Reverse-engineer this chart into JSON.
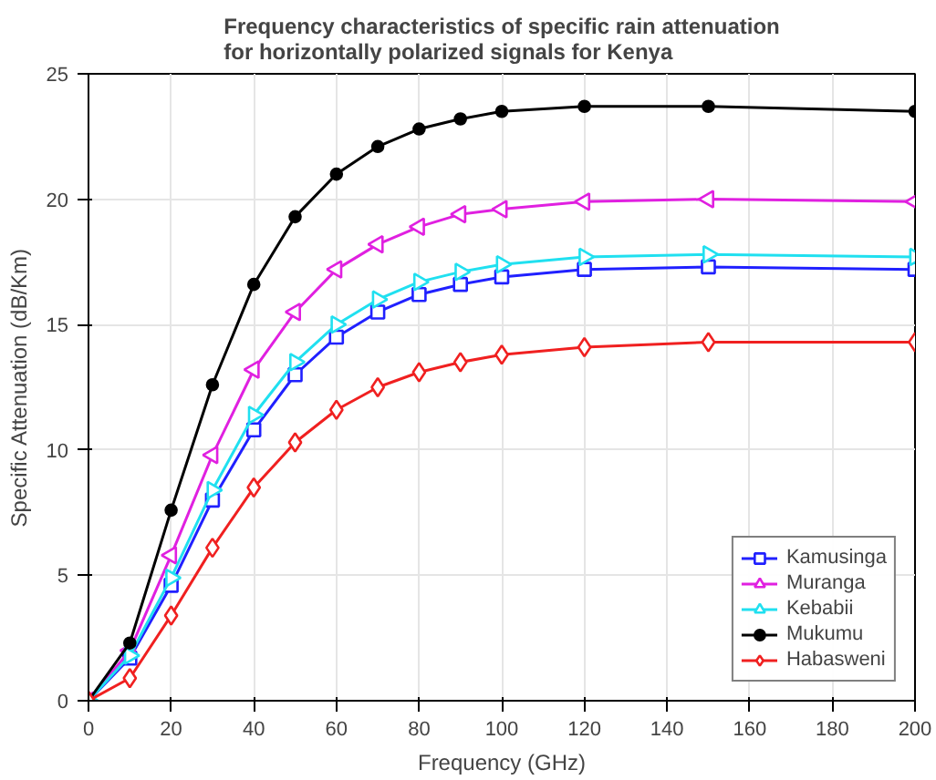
{
  "chart_data": {
    "type": "line",
    "title": "Frequency characteristics of specific rain attenuation\nfor horizontally polarized signals for Kenya",
    "xlabel": "Frequency (GHz)",
    "ylabel": "Specific Attenuation (dB/Km)",
    "x": [
      0,
      10,
      20,
      30,
      40,
      50,
      60,
      70,
      80,
      90,
      100,
      120,
      150,
      200
    ],
    "xlim": [
      0,
      200
    ],
    "xticks": [
      0,
      20,
      40,
      60,
      80,
      100,
      120,
      140,
      160,
      180,
      200
    ],
    "ylim": [
      0,
      25
    ],
    "yticks": [
      0,
      5,
      10,
      15,
      20,
      25
    ],
    "grid": true,
    "legend": "bottom right",
    "line_style": "solid",
    "series": [
      {
        "name": "Kamusinga",
        "color": "#2020ff",
        "marker": "square",
        "values": [
          0,
          1.7,
          4.6,
          8.0,
          10.8,
          13.0,
          14.5,
          15.5,
          16.2,
          16.6,
          16.9,
          17.2,
          17.3,
          17.2
        ]
      },
      {
        "name": "Muranga",
        "color": "#e020e0",
        "marker": "triangle_left",
        "values": [
          0,
          2.0,
          5.8,
          9.8,
          13.2,
          15.5,
          17.2,
          18.2,
          18.9,
          19.4,
          19.6,
          19.9,
          20.0,
          19.9
        ]
      },
      {
        "name": "Kebabii",
        "color": "#20e0f0",
        "marker": "triangle_right",
        "values": [
          0,
          1.8,
          4.9,
          8.4,
          11.4,
          13.5,
          15.0,
          16.0,
          16.7,
          17.1,
          17.4,
          17.7,
          17.8,
          17.7
        ]
      },
      {
        "name": "Mukumu",
        "color": "#000000",
        "marker": "dot",
        "values": [
          0,
          2.3,
          7.6,
          12.6,
          16.6,
          19.3,
          21.0,
          22.1,
          22.8,
          23.2,
          23.5,
          23.7,
          23.7,
          23.5
        ]
      },
      {
        "name": "Habasweni",
        "color": "#f02020",
        "marker": "diamond",
        "values": [
          0,
          0.9,
          3.4,
          6.1,
          8.5,
          10.3,
          11.6,
          12.5,
          13.1,
          13.5,
          13.8,
          14.1,
          14.3,
          14.3
        ]
      }
    ]
  }
}
